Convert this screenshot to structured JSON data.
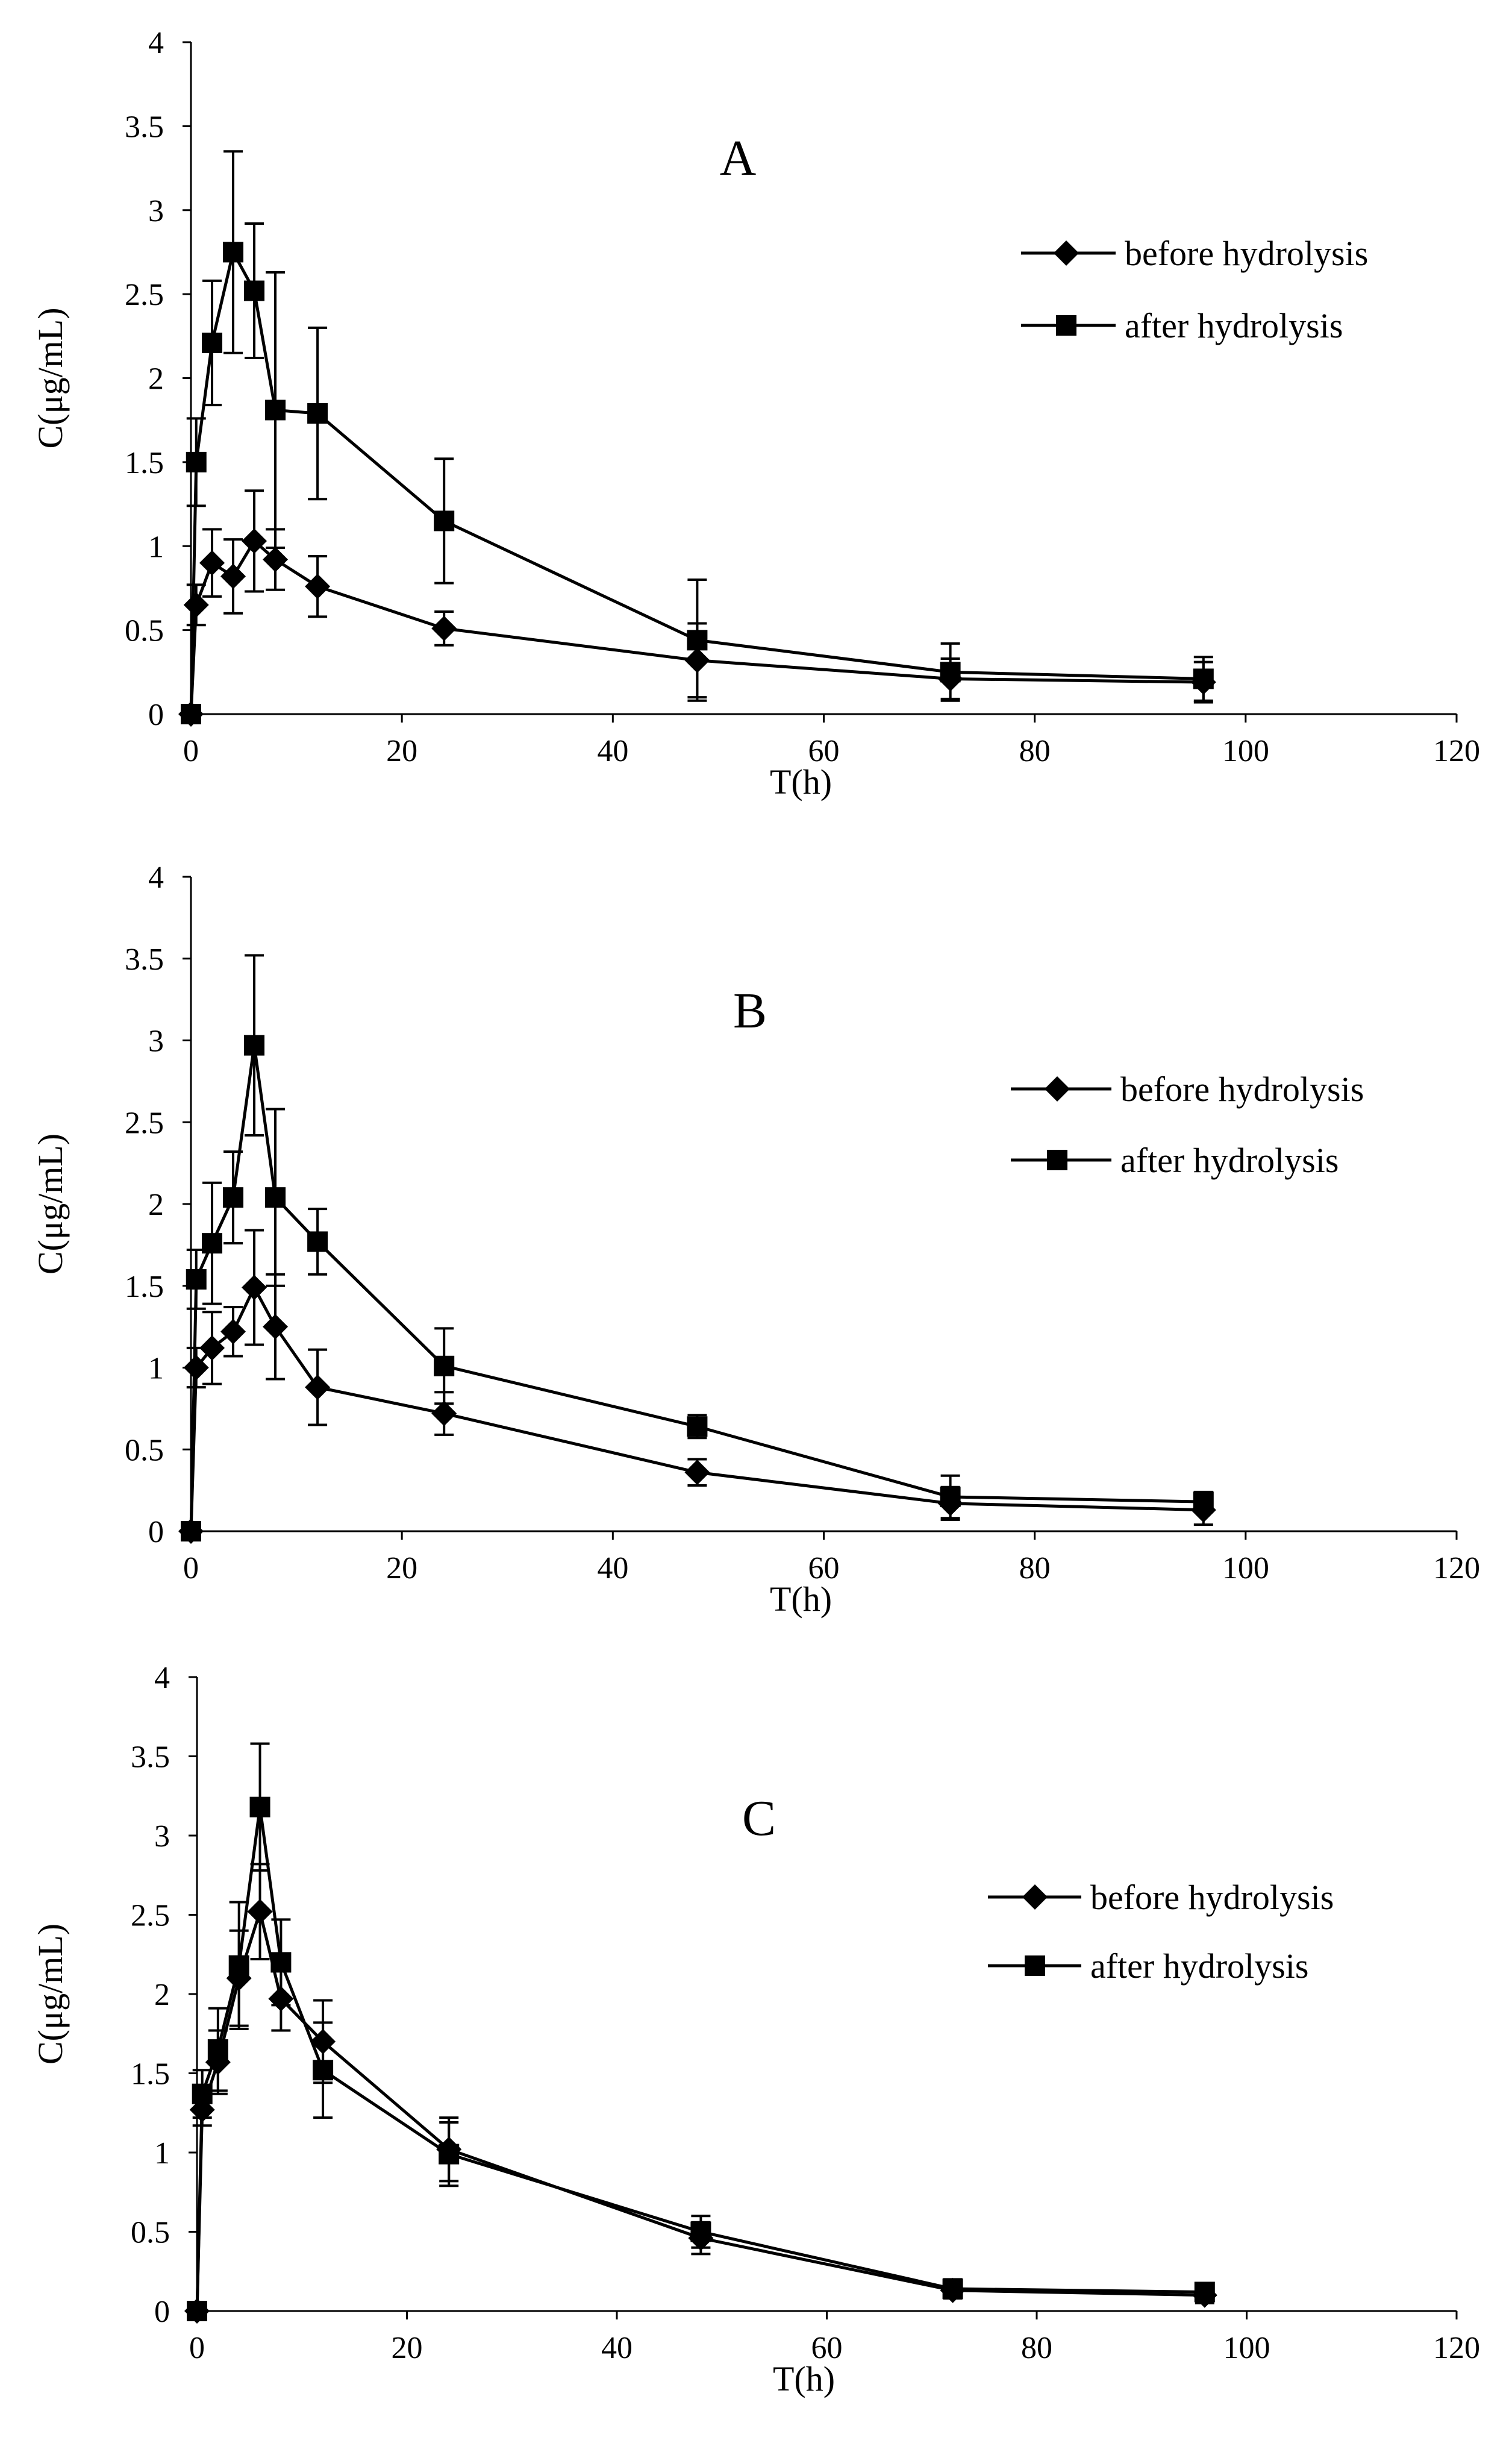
{
  "chart_data": [
    {
      "type": "line",
      "panel": "A",
      "xlabel": "T(h)",
      "ylabel": "C(μg/mL)",
      "xlim": [
        0,
        120
      ],
      "ylim": [
        0,
        4
      ],
      "xticks": [
        0,
        20,
        40,
        60,
        80,
        100,
        120
      ],
      "yticks": [
        0,
        0.5,
        1,
        1.5,
        2,
        2.5,
        3,
        3.5,
        4
      ],
      "grid": false,
      "legend_position": "top-right",
      "series": [
        {
          "name": "before hydrolysis",
          "marker": "diamond",
          "x": [
            0,
            0.5,
            2,
            4,
            6,
            8,
            12,
            24,
            48,
            72,
            96
          ],
          "y": [
            0,
            0.65,
            0.9,
            0.82,
            1.03,
            0.92,
            0.76,
            0.51,
            0.32,
            0.21,
            0.19
          ],
          "error": [
            0,
            0.12,
            0.2,
            0.22,
            0.3,
            0.18,
            0.18,
            0.1,
            0.22,
            0.12,
            0.12
          ]
        },
        {
          "name": "after hydrolysis",
          "marker": "square",
          "x": [
            0,
            0.5,
            2,
            4,
            6,
            8,
            12,
            24,
            48,
            72,
            96
          ],
          "y": [
            0,
            1.5,
            2.21,
            2.75,
            2.52,
            1.81,
            1.79,
            1.15,
            0.44,
            0.25,
            0.21
          ],
          "error": [
            0,
            0.26,
            0.37,
            0.6,
            0.4,
            0.82,
            0.51,
            0.37,
            0.36,
            0.17,
            0.13
          ]
        }
      ]
    },
    {
      "type": "line",
      "panel": "B",
      "xlabel": "T(h)",
      "ylabel": "C(μg/mL)",
      "xlim": [
        0,
        120
      ],
      "ylim": [
        0,
        4
      ],
      "xticks": [
        0,
        20,
        40,
        60,
        80,
        100,
        120
      ],
      "yticks": [
        0,
        0.5,
        1,
        1.5,
        2,
        2.5,
        3,
        3.5,
        4
      ],
      "grid": false,
      "legend_position": "top-right",
      "series": [
        {
          "name": "before hydrolysis",
          "marker": "diamond",
          "x": [
            0,
            0.5,
            2,
            4,
            6,
            8,
            12,
            24,
            48,
            72,
            96
          ],
          "y": [
            0,
            1.0,
            1.12,
            1.22,
            1.49,
            1.25,
            0.88,
            0.72,
            0.36,
            0.17,
            0.13
          ],
          "error": [
            0,
            0.12,
            0.22,
            0.15,
            0.35,
            0.32,
            0.23,
            0.13,
            0.08,
            0.1,
            0.09
          ]
        },
        {
          "name": "after hydrolysis",
          "marker": "square",
          "x": [
            0,
            0.5,
            2,
            4,
            6,
            8,
            12,
            24,
            48,
            72,
            96
          ],
          "y": [
            0,
            1.54,
            1.76,
            2.04,
            2.97,
            2.04,
            1.77,
            1.01,
            0.64,
            0.21,
            0.18
          ],
          "error": [
            0,
            0.18,
            0.37,
            0.28,
            0.55,
            0.54,
            0.2,
            0.23,
            0.07,
            0.13,
            0.06
          ]
        }
      ]
    },
    {
      "type": "line",
      "panel": "C",
      "xlabel": "T(h)",
      "ylabel": "C(μg/mL)",
      "xlim": [
        0,
        120
      ],
      "ylim": [
        0,
        4
      ],
      "xticks": [
        0,
        20,
        40,
        60,
        80,
        100,
        120
      ],
      "yticks": [
        0,
        0.5,
        1,
        1.5,
        2,
        2.5,
        3,
        3.5,
        4
      ],
      "grid": false,
      "legend_position": "right",
      "series": [
        {
          "name": "before hydrolysis",
          "marker": "diamond",
          "x": [
            0,
            0.5,
            2,
            4,
            6,
            8,
            12,
            24,
            48,
            72,
            96
          ],
          "y": [
            0,
            1.27,
            1.57,
            2.1,
            2.52,
            1.97,
            1.7,
            1.02,
            0.46,
            0.13,
            0.1
          ],
          "error": [
            0,
            0.1,
            0.2,
            0.3,
            0.3,
            0.2,
            0.26,
            0.2,
            0.1,
            0.05,
            0.05
          ]
        },
        {
          "name": "after hydrolysis",
          "marker": "square",
          "x": [
            0,
            0.5,
            2,
            4,
            6,
            8,
            12,
            24,
            48,
            72,
            96
          ],
          "y": [
            0,
            1.37,
            1.65,
            2.18,
            3.18,
            2.2,
            1.52,
            0.99,
            0.5,
            0.14,
            0.12
          ],
          "error": [
            0,
            0.15,
            0.26,
            0.4,
            0.4,
            0.27,
            0.3,
            0.2,
            0.1,
            0.06,
            0.05
          ]
        }
      ]
    }
  ]
}
